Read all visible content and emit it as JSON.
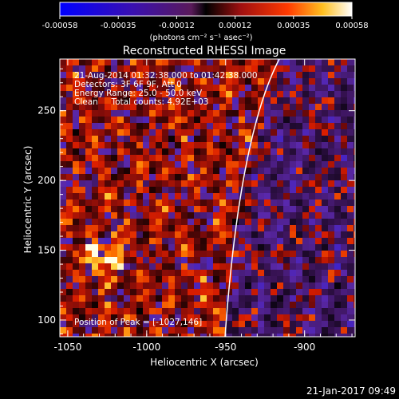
{
  "colorbar": {
    "tick_labels": [
      "-0.00058",
      "-0.00035",
      "-0.00012",
      "0.00012",
      "0.00035",
      "0.00058"
    ],
    "units": "(photons cm⁻² s⁻¹ asec⁻²)"
  },
  "plot": {
    "title": "Reconstructed RHESSI Image",
    "info_lines": [
      "21-Aug-2014 01:32:38.000 to 01:42:38.000",
      "Detectors: 3F 6F 9F, Att 0",
      "Energy Range: 25.0 - 50.0 keV",
      "Clean     Total counts: 4.92E+03"
    ],
    "peak_text": "Position of Peak = [-1027,146]",
    "xlabel": "Heliocentric X (arcsec)",
    "ylabel": "Heliocentric Y (arcsec)",
    "x_ticks": [
      "-1050",
      "-1000",
      "-950",
      "-900"
    ],
    "y_ticks": [
      "100",
      "150",
      "200",
      "250"
    ],
    "xlim": [
      -1055,
      -868
    ],
    "ylim": [
      88,
      287
    ]
  },
  "footer": {
    "timestamp": "21-Jan-2017 09:49"
  },
  "colors": {
    "background": "#000000",
    "text": "#ffffff",
    "limb": "#ffffff"
  }
}
